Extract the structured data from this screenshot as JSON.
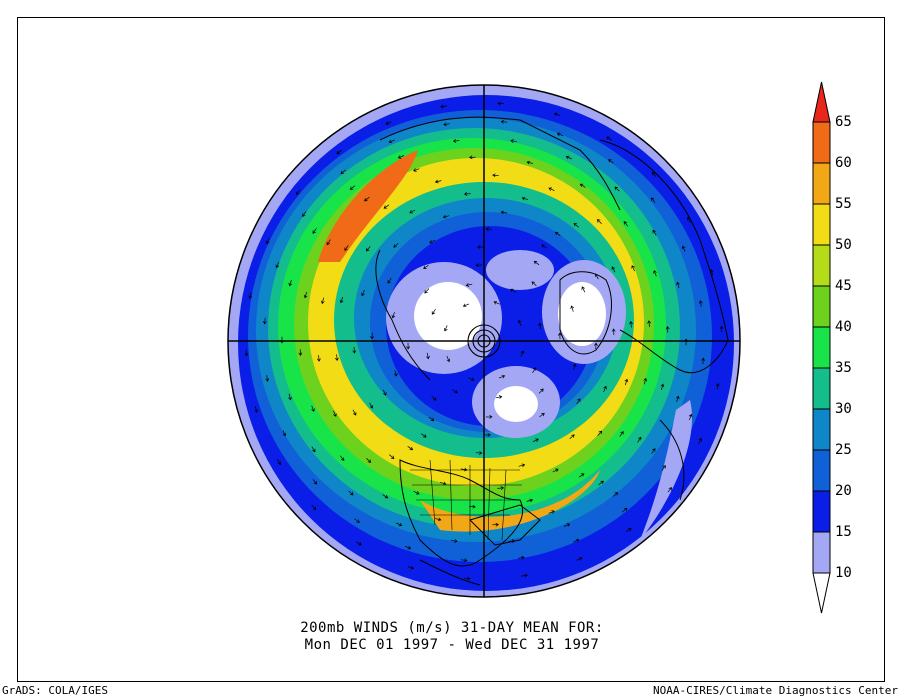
{
  "plot": {
    "caption_line1": "200mb WINDS (m/s)   31-DAY MEAN FOR:",
    "caption_line2": "Mon DEC 01 1997 - Wed DEC 31 1997",
    "footer_left": "GrADS: COLA/IGES",
    "footer_right": "NOAA-CIRES/Climate Diagnostics Center"
  },
  "colorbar": {
    "levels": [
      "65",
      "60",
      "55",
      "50",
      "45",
      "40",
      "35",
      "30",
      "25",
      "20",
      "15",
      "10"
    ],
    "colors": [
      "#e8261c",
      "#f06a17",
      "#f2a716",
      "#f2dc16",
      "#b4dc18",
      "#6cd21e",
      "#18e44a",
      "#13bd8c",
      "#0e86c8",
      "#1060d8",
      "#0a1ee8",
      "#a4a8f4",
      "#ffffff"
    ]
  },
  "map": {
    "projection": "polar-stereographic-north",
    "field": "200mb wind speed (m/s) with wind vectors"
  }
}
